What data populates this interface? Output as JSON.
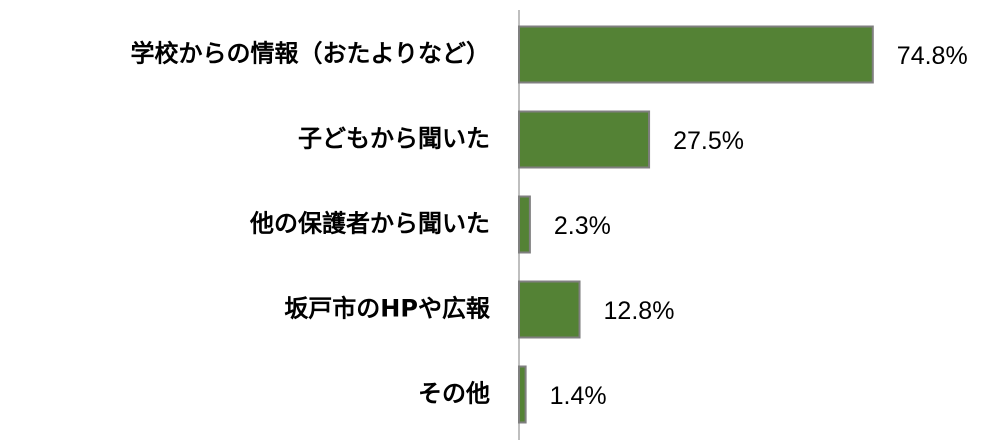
{
  "chart_data": {
    "type": "hbar",
    "categories": [
      "学校からの情報（おたよりなど）",
      "子どもから聞いた",
      "他の保護者から聞いた",
      "坂戸市のHPや広報",
      "その他"
    ],
    "values": [
      74.8,
      27.5,
      2.3,
      12.8,
      1.4
    ],
    "value_labels": [
      "74.8%",
      "27.5%",
      "2.3%",
      "12.8%",
      "1.4%"
    ],
    "color": "#548235",
    "xlim": [
      0,
      100
    ]
  }
}
